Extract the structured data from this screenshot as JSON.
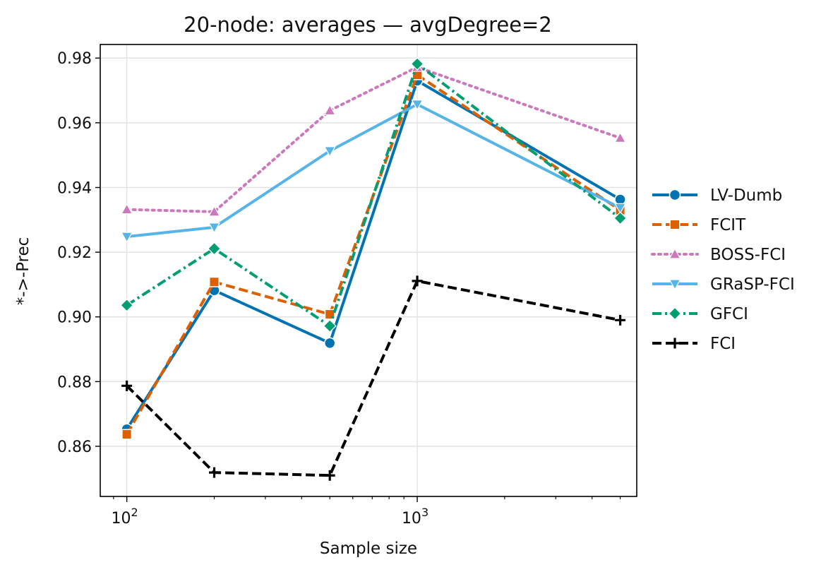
{
  "chart_data": {
    "type": "line",
    "title": "20-node: averages — avgDegree=2",
    "xlabel": "Sample size",
    "ylabel": "*->-Prec",
    "xscale": "log",
    "x": [
      100,
      200,
      500,
      1000,
      5000
    ],
    "xlim": [
      81,
      5700
    ],
    "ylim": [
      0.8445,
      0.9842
    ],
    "yticks": [
      "0.86",
      "0.88",
      "0.90",
      "0.92",
      "0.94",
      "0.96",
      "0.98"
    ],
    "ytick_values": [
      0.86,
      0.88,
      0.9,
      0.92,
      0.94,
      0.96,
      0.98
    ],
    "xticks": [
      {
        "value": 100,
        "base": "10",
        "exp": "2"
      },
      {
        "value": 1000,
        "base": "10",
        "exp": "3"
      }
    ],
    "grid": true,
    "legend_position": "right, outside",
    "series": [
      {
        "name": "LV-Dumb",
        "color": "#0173B2",
        "dash": "solid",
        "marker": "circle",
        "values": [
          0.8653,
          0.9082,
          0.8919,
          0.973,
          0.9363
        ]
      },
      {
        "name": "FCIT",
        "color": "#DE5F00",
        "dash": "dashed",
        "marker": "square",
        "values": [
          0.8637,
          0.9108,
          0.9008,
          0.9748,
          0.933
        ]
      },
      {
        "name": "BOSS-FCI",
        "color": "#CC78BC",
        "dash": "dotted",
        "marker": "triangle-up",
        "values": [
          0.9332,
          0.9325,
          0.9638,
          0.9772,
          0.9553
        ]
      },
      {
        "name": "GRaSP-FCI",
        "color": "#56B4E9",
        "dash": "solid",
        "marker": "triangle-down",
        "values": [
          0.9248,
          0.9277,
          0.9513,
          0.9657,
          0.9337
        ]
      },
      {
        "name": "GFCI",
        "color": "#029E73",
        "dash": "dashdot",
        "marker": "diamond",
        "values": [
          0.9036,
          0.9211,
          0.8972,
          0.9782,
          0.9305
        ]
      },
      {
        "name": "FCI",
        "color": "#000000",
        "dash": "dashed",
        "marker": "plus",
        "values": [
          0.8787,
          0.8519,
          0.851,
          0.9111,
          0.899
        ]
      }
    ]
  }
}
